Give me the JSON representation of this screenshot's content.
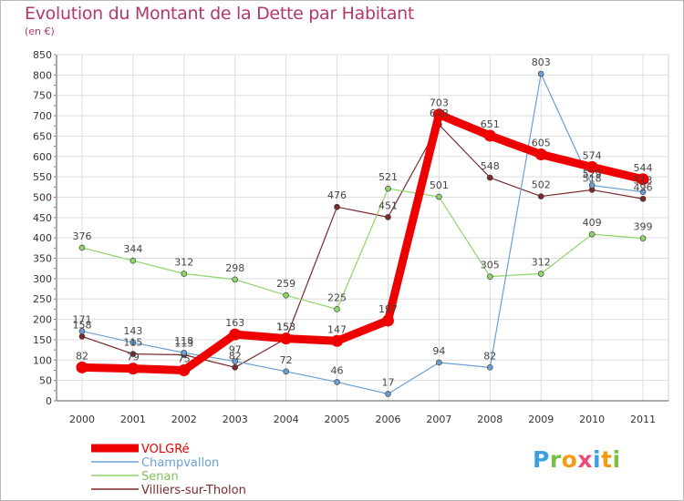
{
  "chart_data": {
    "type": "line",
    "title": "Evolution du Montant de la Dette par Habitant",
    "subtitle": "(en €)",
    "x": [
      "2000",
      "2001",
      "2002",
      "2003",
      "2004",
      "2005",
      "2006",
      "2007",
      "2008",
      "2009",
      "2010",
      "2011"
    ],
    "yticks": [
      0,
      50,
      100,
      150,
      200,
      250,
      300,
      350,
      400,
      450,
      500,
      550,
      600,
      650,
      700,
      750,
      800,
      850
    ],
    "ylim": [
      0,
      850
    ],
    "grid": true,
    "legend_position": "bottom-left",
    "series": [
      {
        "name": "Villiers-sur-Tholon",
        "color": "#7a2a2a",
        "width": 1.2,
        "values": [
          158,
          115,
          113,
          82,
          153,
          476,
          451,
          678,
          548,
          502,
          518,
          496
        ]
      },
      {
        "name": "Senan",
        "color": "#8fd46a",
        "width": 1.2,
        "values": [
          376,
          344,
          312,
          298,
          259,
          225,
          521,
          501,
          305,
          312,
          409,
          399
        ]
      },
      {
        "name": "Champvallon",
        "color": "#6b9fd4",
        "width": 1.2,
        "values": [
          171,
          143,
          118,
          97,
          72,
          46,
          17,
          94,
          82,
          803,
          529,
          513
        ]
      },
      {
        "name": "VOLGRé",
        "color": "#ee0000",
        "width": 9,
        "values": [
          82,
          79,
          75,
          163,
          153,
          147,
          197,
          703,
          651,
          605,
          574,
          544
        ]
      }
    ],
    "legend": [
      "VOLGRé",
      "Champvallon",
      "Senan",
      "Villiers-sur-Tholon"
    ]
  },
  "logo": {
    "letters": [
      "P",
      "r",
      "o",
      "x",
      "i",
      "t",
      "i"
    ],
    "colors": [
      "#3aa0e0",
      "#7ac143",
      "#f39c12",
      "#e94e77",
      "#3aa0e0",
      "#f39c12",
      "#7ac143"
    ]
  }
}
